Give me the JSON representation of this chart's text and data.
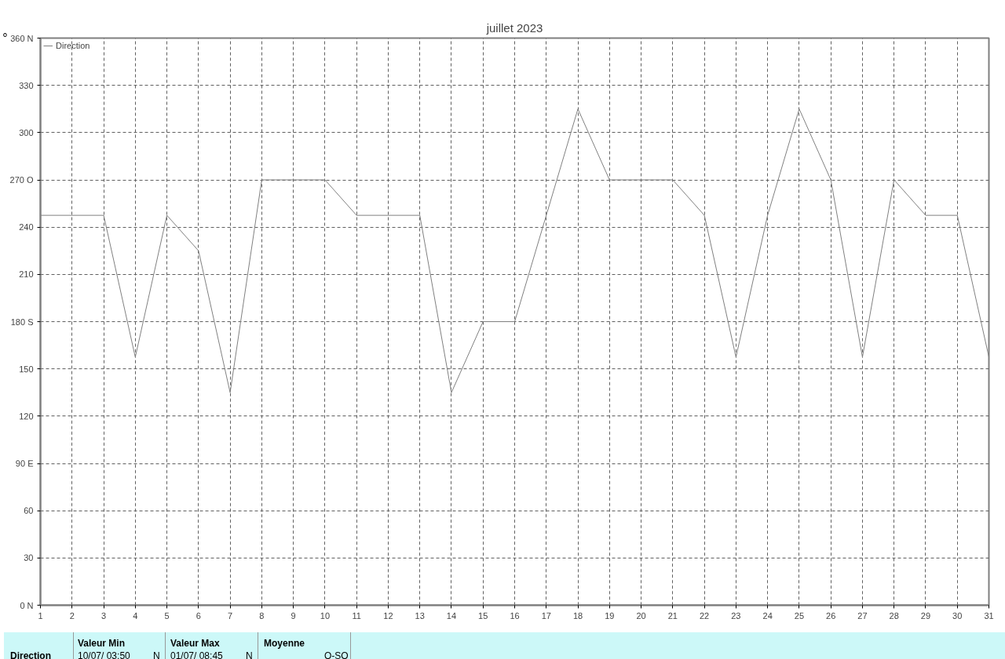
{
  "chart_data": {
    "type": "line",
    "title": "juillet 2023",
    "ylabel": "°",
    "x": [
      1,
      2,
      3,
      4,
      5,
      6,
      7,
      8,
      9,
      10,
      11,
      12,
      13,
      14,
      15,
      16,
      17,
      18,
      19,
      20,
      21,
      22,
      23,
      24,
      25,
      26,
      27,
      28,
      29,
      30,
      31
    ],
    "series": [
      {
        "name": "Direction",
        "color": "#808080",
        "values": [
          247.5,
          247.5,
          247.5,
          157.5,
          247.5,
          225,
          135,
          270,
          270,
          270,
          247.5,
          247.5,
          247.5,
          135,
          180,
          180,
          247.5,
          315,
          270,
          270,
          270,
          247.5,
          157.5,
          247.5,
          315,
          270,
          157.5,
          270,
          247.5,
          247.5,
          157.5
        ]
      }
    ],
    "xlim": [
      1,
      31
    ],
    "xticks": [
      1,
      2,
      3,
      4,
      5,
      6,
      7,
      8,
      9,
      10,
      11,
      12,
      13,
      14,
      15,
      16,
      17,
      18,
      19,
      20,
      21,
      22,
      23,
      24,
      25,
      26,
      27,
      28,
      29,
      30,
      31
    ],
    "ylim": [
      0,
      360
    ],
    "yticks": [
      {
        "value": 0,
        "label": "0 N"
      },
      30,
      60,
      {
        "value": 90,
        "label": "90 E"
      },
      120,
      150,
      {
        "value": 180,
        "label": "180 S"
      },
      210,
      240,
      {
        "value": 270,
        "label": "270 O"
      },
      300,
      330,
      {
        "value": 360,
        "label": "360 N"
      }
    ],
    "grid": true,
    "legend": "top left",
    "marker": "none",
    "line_style": "solid",
    "annotations": [
      "Direction",
      "Valeur Min",
      "10/07/  03:50",
      "N",
      "Valeur Max",
      "01/07/  08:45",
      "N",
      "Moyenne",
      "O-SO"
    ]
  }
}
